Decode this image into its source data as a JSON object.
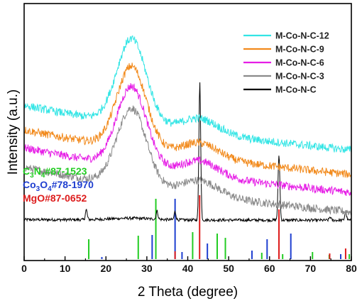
{
  "chart_data": {
    "type": "line",
    "xlabel": "2 Theta (degree)",
    "ylabel": "Intensity (a.u.)",
    "xlim": [
      0,
      80
    ],
    "x_ticks": [
      0,
      10,
      20,
      30,
      40,
      50,
      60,
      70,
      80
    ],
    "y_ticks_shown": false,
    "grid": false,
    "legend_position": "top-right",
    "series": [
      {
        "name": "M-Co-N-C-12",
        "color": "#33e5e5",
        "offset": 0.6
      },
      {
        "name": "M-Co-N-C-9",
        "color": "#f28a1c",
        "offset": 0.45
      },
      {
        "name": "M-Co-N-C-6",
        "color": "#e61ee6",
        "offset": 0.34
      },
      {
        "name": "M-Co-N-C-3",
        "color": "#8a8a8a",
        "offset": 0.22
      },
      {
        "name": "M-Co-N-C",
        "color": "#000000",
        "offset": 0.0
      }
    ],
    "peak_model": {
      "broad_peak_centers": [
        26.3,
        43.0
      ],
      "black_sharp_peaks": [
        15.2,
        32.5,
        36.9,
        42.95,
        62.3,
        74.8,
        78.6
      ]
    },
    "reference_patterns": [
      {
        "name": "C3N4#87-1523",
        "text": "C",
        "sub1": "3",
        "mid": "N",
        "sub2": "4",
        "suffix": "#87-1523",
        "color": "#22cc22",
        "peaks": [
          {
            "x": 15.8,
            "h": 0.28
          },
          {
            "x": 27.9,
            "h": 0.33
          },
          {
            "x": 32.2,
            "h": 0.85
          },
          {
            "x": 41.2,
            "h": 0.38
          },
          {
            "x": 47.2,
            "h": 0.36
          },
          {
            "x": 49.2,
            "h": 0.3
          },
          {
            "x": 58.1,
            "h": 0.09
          },
          {
            "x": 63.2,
            "h": 0.07
          },
          {
            "x": 70.5,
            "h": 0.1
          },
          {
            "x": 74.6,
            "h": 0.06
          },
          {
            "x": 79.5,
            "h": 0.07
          }
        ]
      },
      {
        "name": "Co3O4#78-1970",
        "text": "Co",
        "sub1": "3",
        "mid": "O",
        "sub2": "4",
        "suffix": "#78-1970",
        "color": "#1f3fd0",
        "peaks": [
          {
            "x": 19.0,
            "h": 0.03
          },
          {
            "x": 31.3,
            "h": 0.34
          },
          {
            "x": 36.9,
            "h": 0.85
          },
          {
            "x": 38.6,
            "h": 0.1
          },
          {
            "x": 44.8,
            "h": 0.22
          },
          {
            "x": 55.7,
            "h": 0.12
          },
          {
            "x": 59.4,
            "h": 0.28
          },
          {
            "x": 65.2,
            "h": 0.36
          },
          {
            "x": 77.4,
            "h": 0.07
          }
        ]
      },
      {
        "name": "MgO#87-0652",
        "text": "MgO",
        "suffix": "#87-0652",
        "color": "#dd1c1c",
        "peaks": [
          {
            "x": 36.9,
            "h": 0.11
          },
          {
            "x": 42.9,
            "h": 0.9
          },
          {
            "x": 62.3,
            "h": 0.7
          },
          {
            "x": 74.7,
            "h": 0.08
          },
          {
            "x": 78.6,
            "h": 0.15
          }
        ]
      }
    ]
  }
}
